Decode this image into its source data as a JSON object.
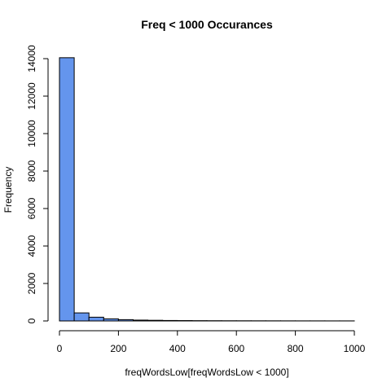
{
  "chart_data": {
    "type": "bar",
    "title": "Freq < 1000 Occurances",
    "xlabel": "freqWordsLow[freqWordsLow < 1000]",
    "ylabel": "Frequency",
    "bin_edges": [
      0,
      50,
      100,
      150,
      200,
      250,
      300,
      350,
      400,
      450,
      500,
      550,
      600,
      650,
      700,
      750,
      800,
      850,
      900,
      950,
      1000
    ],
    "values": [
      14050,
      430,
      200,
      110,
      70,
      45,
      35,
      25,
      20,
      15,
      12,
      10,
      9,
      8,
      7,
      6,
      5,
      5,
      4,
      4
    ],
    "xlim": [
      0,
      1000
    ],
    "ylim": [
      0,
      14000
    ],
    "xticks": [
      0,
      200,
      400,
      600,
      800,
      1000
    ],
    "yticks": [
      0,
      2000,
      4000,
      6000,
      8000,
      10000,
      12000,
      14000
    ],
    "bar_color": "#6495ED",
    "grid": false
  }
}
